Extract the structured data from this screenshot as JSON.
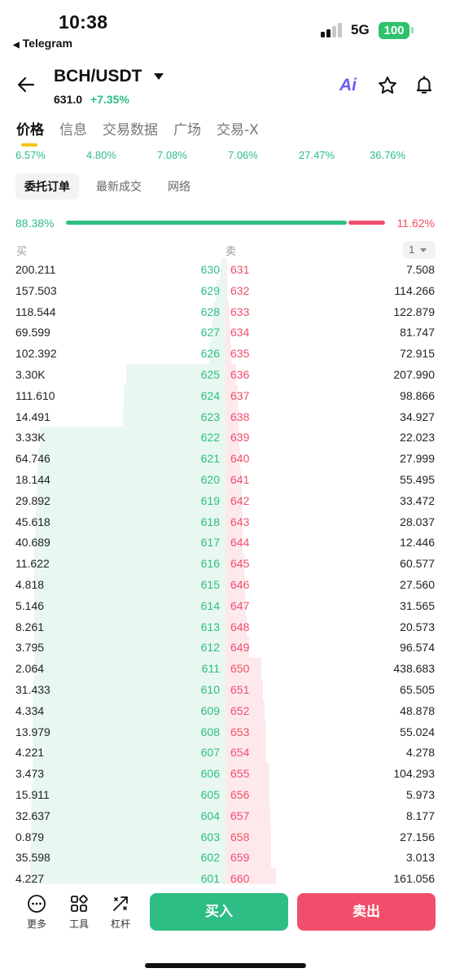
{
  "status_bar": {
    "time": "10:38",
    "back_app": "Telegram",
    "network": "5G",
    "battery": "100"
  },
  "header": {
    "pair": "BCH/USDT",
    "last_price": "631.0",
    "change": "+7.35%",
    "ai_label": "Ai"
  },
  "tabs": [
    {
      "label": "价格",
      "active": true
    },
    {
      "label": "信息",
      "active": false
    },
    {
      "label": "交易数据",
      "active": false
    },
    {
      "label": "广场",
      "active": false
    },
    {
      "label": "交易-X",
      "active": false
    }
  ],
  "period_changes": [
    "6.57%",
    "4.80%",
    "7.08%",
    "7.06%",
    "27.47%",
    "36.76%"
  ],
  "subtabs": [
    {
      "label": "委托订单",
      "active": true
    },
    {
      "label": "最新成交",
      "active": false
    },
    {
      "label": "网络",
      "active": false
    }
  ],
  "ratio": {
    "buy_pct": "88.38%",
    "sell_pct": "11.62%",
    "buy_fraction": 0.8838
  },
  "book_header": {
    "buy": "买",
    "sell": "卖",
    "precision": "1"
  },
  "order_book": [
    {
      "bid_qty": "200.211",
      "bid_price": "630",
      "ask_price": "631",
      "ask_qty": "7.508"
    },
    {
      "bid_qty": "157.503",
      "bid_price": "629",
      "ask_price": "632",
      "ask_qty": "114.266"
    },
    {
      "bid_qty": "118.544",
      "bid_price": "628",
      "ask_price": "633",
      "ask_qty": "122.879"
    },
    {
      "bid_qty": "69.599",
      "bid_price": "627",
      "ask_price": "634",
      "ask_qty": "81.747"
    },
    {
      "bid_qty": "102.392",
      "bid_price": "626",
      "ask_price": "635",
      "ask_qty": "72.915"
    },
    {
      "bid_qty": "3.30K",
      "bid_price": "625",
      "ask_price": "636",
      "ask_qty": "207.990"
    },
    {
      "bid_qty": "111.610",
      "bid_price": "624",
      "ask_price": "637",
      "ask_qty": "98.866"
    },
    {
      "bid_qty": "14.491",
      "bid_price": "623",
      "ask_price": "638",
      "ask_qty": "34.927"
    },
    {
      "bid_qty": "3.33K",
      "bid_price": "622",
      "ask_price": "639",
      "ask_qty": "22.023"
    },
    {
      "bid_qty": "64.746",
      "bid_price": "621",
      "ask_price": "640",
      "ask_qty": "27.999"
    },
    {
      "bid_qty": "18.144",
      "bid_price": "620",
      "ask_price": "641",
      "ask_qty": "55.495"
    },
    {
      "bid_qty": "29.892",
      "bid_price": "619",
      "ask_price": "642",
      "ask_qty": "33.472"
    },
    {
      "bid_qty": "45.618",
      "bid_price": "618",
      "ask_price": "643",
      "ask_qty": "28.037"
    },
    {
      "bid_qty": "40.689",
      "bid_price": "617",
      "ask_price": "644",
      "ask_qty": "12.446"
    },
    {
      "bid_qty": "11.622",
      "bid_price": "616",
      "ask_price": "645",
      "ask_qty": "60.577"
    },
    {
      "bid_qty": "4.818",
      "bid_price": "615",
      "ask_price": "646",
      "ask_qty": "27.560"
    },
    {
      "bid_qty": "5.146",
      "bid_price": "614",
      "ask_price": "647",
      "ask_qty": "31.565"
    },
    {
      "bid_qty": "8.261",
      "bid_price": "613",
      "ask_price": "648",
      "ask_qty": "20.573"
    },
    {
      "bid_qty": "3.795",
      "bid_price": "612",
      "ask_price": "649",
      "ask_qty": "96.574"
    },
    {
      "bid_qty": "2.064",
      "bid_price": "611",
      "ask_price": "650",
      "ask_qty": "438.683"
    },
    {
      "bid_qty": "31.433",
      "bid_price": "610",
      "ask_price": "651",
      "ask_qty": "65.505"
    },
    {
      "bid_qty": "4.334",
      "bid_price": "609",
      "ask_price": "652",
      "ask_qty": "48.878"
    },
    {
      "bid_qty": "13.979",
      "bid_price": "608",
      "ask_price": "653",
      "ask_qty": "55.024"
    },
    {
      "bid_qty": "4.221",
      "bid_price": "607",
      "ask_price": "654",
      "ask_qty": "4.278"
    },
    {
      "bid_qty": "3.473",
      "bid_price": "606",
      "ask_price": "655",
      "ask_qty": "104.293"
    },
    {
      "bid_qty": "15.911",
      "bid_price": "605",
      "ask_price": "656",
      "ask_qty": "5.973"
    },
    {
      "bid_qty": "32.637",
      "bid_price": "604",
      "ask_price": "657",
      "ask_qty": "8.177"
    },
    {
      "bid_qty": "0.879",
      "bid_price": "603",
      "ask_price": "658",
      "ask_qty": "27.156"
    },
    {
      "bid_qty": "35.598",
      "bid_price": "602",
      "ask_price": "659",
      "ask_qty": "3.013"
    },
    {
      "bid_qty": "4.227",
      "bid_price": "601",
      "ask_price": "660",
      "ask_qty": "161.056"
    }
  ],
  "bottom_bar": {
    "more_label": "更多",
    "tools_label": "工具",
    "leverage_label": "杠杆",
    "buy_label": "买入",
    "sell_label": "卖出"
  },
  "colors": {
    "buy": "#2dbd85",
    "sell": "#f04e6a",
    "accent": "#f5c518"
  }
}
